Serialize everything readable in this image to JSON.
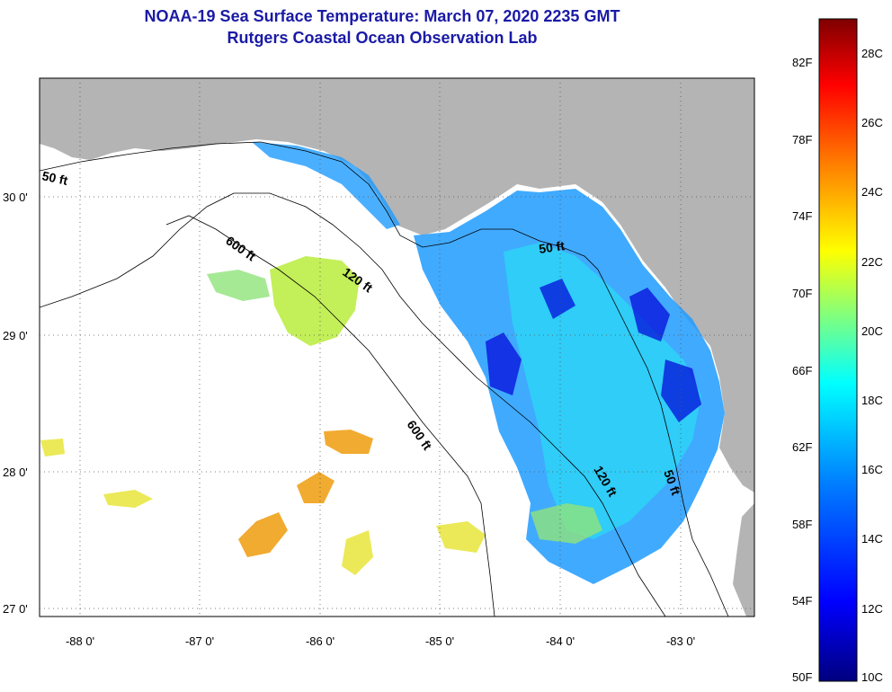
{
  "header": {
    "title_line1": "NOAA-19 Sea Surface Temperature:  March 07, 2020 2235 GMT",
    "title_line2": "Rutgers Coastal Ocean Observation Lab"
  },
  "map": {
    "lat_ticks": [
      "30 0'",
      "29 0'",
      "28 0'",
      "27 0'"
    ],
    "lon_ticks": [
      "-88 0'",
      "-87 0'",
      "-86 0'",
      "-85 0'",
      "-84 0'",
      "-83 0'"
    ],
    "contour_labels": [
      "50 ft",
      "600 ft",
      "120 ft",
      "50 ft",
      "600 ft",
      "120 ft",
      "50 ft"
    ],
    "colors": {
      "land": "#b4b4b4",
      "ocean_clouds": "#ffffff",
      "contour": "#000000"
    }
  },
  "colorbar": {
    "fahrenheit_labels": [
      "82F",
      "78F",
      "74F",
      "70F",
      "66F",
      "62F",
      "58F",
      "54F",
      "50F"
    ],
    "celsius_labels": [
      "28C",
      "26C",
      "24C",
      "22C",
      "20C",
      "18C",
      "16C",
      "14C",
      "12C",
      "10C"
    ],
    "range_c": [
      10,
      29.2
    ],
    "stops": [
      "#00007f",
      "#0000ff",
      "#007fff",
      "#00ffff",
      "#7fff7f",
      "#ffff00",
      "#ff7f00",
      "#ff0000",
      "#7f0000"
    ]
  }
}
